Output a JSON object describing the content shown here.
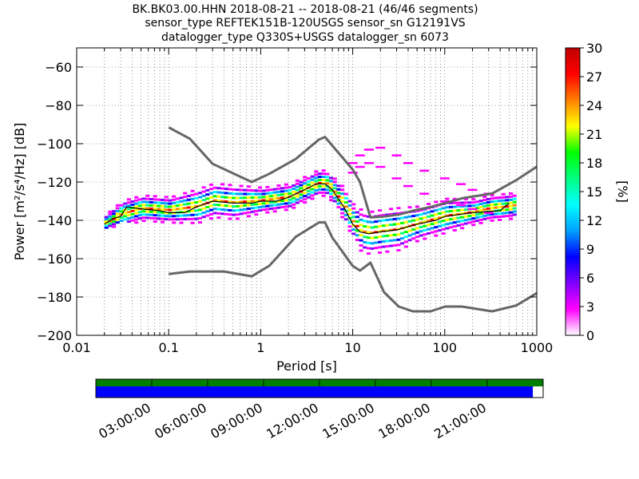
{
  "chart_data": {
    "type": "heatmap",
    "title_lines": [
      "BK.BK03.00.HHN   2018-08-21 -- 2018-08-21  (46/46 segments)",
      "sensor_type REFTEK151B-120USGS sensor_sn G12191VS",
      "datalogger_type Q330S+USGS datalogger_sn 6073"
    ],
    "xlabel": "Period [s]",
    "ylabel": "Power [m²/s⁴/Hz] [dB]",
    "xscale": "log",
    "xlim": [
      0.01,
      1000
    ],
    "ylim": [
      -200,
      -50
    ],
    "xticks": [
      0.01,
      0.1,
      1,
      10,
      100,
      1000
    ],
    "xtick_labels": [
      "0.01",
      "0.1",
      "1",
      "10",
      "100",
      "1000"
    ],
    "yticks": [
      -60,
      -80,
      -100,
      -120,
      -140,
      -160,
      -180,
      -200
    ],
    "ytick_labels": [
      "−60",
      "−80",
      "−100",
      "−120",
      "−140",
      "−160",
      "−180",
      "−200"
    ],
    "grid": "dotted",
    "colorbar": {
      "label": "[%]",
      "min": 0,
      "max": 30,
      "ticks": [
        0,
        3,
        6,
        9,
        12,
        15,
        18,
        21,
        24,
        27,
        30
      ],
      "colors": [
        "#ffffff",
        "#ff00ff",
        "#8000ff",
        "#0000ff",
        "#00a0ff",
        "#00ffff",
        "#00ff80",
        "#00ff00",
        "#ffff00",
        "#ff8000",
        "#ff0000",
        "#c00000"
      ]
    },
    "nhnm": {
      "x": [
        0.1,
        0.17,
        0.3,
        0.8,
        1.24,
        2.4,
        4.3,
        5.0,
        6.0,
        10,
        12,
        15.6,
        21.9,
        31.6,
        45,
        70,
        101,
        154,
        328,
        600,
        1000
      ],
      "y": [
        -91.5,
        -97.4,
        -110.5,
        -120,
        -115.7,
        -108,
        -97.8,
        -96.5,
        -101,
        -113.5,
        -120,
        -138.5,
        -138,
        -137,
        -135,
        -133,
        -131,
        -128.5,
        -126,
        -119,
        -112
      ]
    },
    "nlnm": {
      "x": [
        0.1,
        0.17,
        0.4,
        0.8,
        1.24,
        2.4,
        4.3,
        5.0,
        6.0,
        10,
        12,
        15.6,
        21.9,
        31.6,
        45,
        70,
        101,
        154,
        328,
        600,
        1000
      ],
      "y": [
        -168,
        -166.7,
        -166.7,
        -169.2,
        -163.7,
        -148.6,
        -141.1,
        -141.1,
        -149,
        -163.8,
        -166.2,
        -162.1,
        -177.5,
        -185,
        -187.5,
        -187.5,
        -185,
        -185,
        -187.5,
        -184.4,
        -178
      ]
    },
    "mode": {
      "x": [
        0.02,
        0.025,
        0.03,
        0.035,
        0.05,
        0.08,
        0.1,
        0.15,
        0.2,
        0.3,
        0.5,
        0.8,
        1,
        1.5,
        2,
        3,
        4,
        5,
        6,
        8,
        10,
        12,
        15,
        20,
        30,
        50,
        80,
        100,
        200,
        400,
        500
      ],
      "y": [
        -142,
        -139,
        -138,
        -133,
        -134,
        -135,
        -136,
        -136,
        -133,
        -130,
        -131,
        -131,
        -130,
        -130,
        -128,
        -124,
        -121,
        -121,
        -124,
        -133,
        -142,
        -146,
        -147,
        -146,
        -145,
        -142,
        -140,
        -138,
        -136,
        -135,
        -131
      ]
    },
    "density_bands": [
      {
        "x": [
          0.02,
          0.03,
          0.05,
          0.1,
          0.2,
          0.3,
          0.5,
          1,
          2,
          3,
          4,
          5,
          6,
          8,
          10,
          12,
          15,
          20,
          30,
          50,
          100,
          200,
          300,
          500,
          600
        ],
        "center": [
          -142,
          -137,
          -134,
          -135,
          -133,
          -130,
          -131,
          -130,
          -128,
          -124,
          -121,
          -121,
          -125,
          -133,
          -142,
          -146,
          -147,
          -146,
          -145,
          -142,
          -138,
          -136,
          -134,
          -133,
          -132
        ],
        "spread": [
          2,
          3,
          3,
          3,
          4,
          4,
          4,
          3,
          3,
          3,
          3,
          3,
          3,
          4,
          4,
          5,
          5,
          5,
          5,
          4,
          4,
          3,
          3,
          3,
          3
        ]
      }
    ],
    "outliers": {
      "x": [
        10,
        12,
        15,
        20,
        30,
        40,
        60,
        100,
        150,
        200,
        300,
        400
      ],
      "y_upper": [
        -110,
        -106,
        -103,
        -102,
        -106,
        -110,
        -114,
        -118,
        -121,
        -124,
        -126,
        -128
      ],
      "y_lower": [
        -115,
        -112,
        -110,
        -112,
        -118,
        -122,
        -126,
        -130,
        -132,
        -134,
        -136,
        -138
      ]
    }
  },
  "timeline": {
    "labels": [
      "03:00:00",
      "06:00:00",
      "09:00:00",
      "12:00:00",
      "15:00:00",
      "18:00:00",
      "21:00:00"
    ],
    "top_color": "#007f00",
    "bottom_color": "#0000ff",
    "coverage_fraction": 0.977
  }
}
